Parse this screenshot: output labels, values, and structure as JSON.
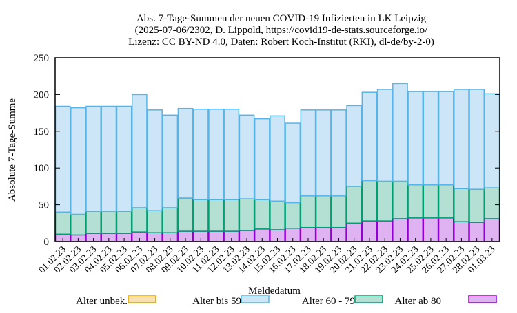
{
  "chart_data": {
    "type": "bar",
    "stacked": true,
    "title_lines": [
      "Abs. 7-Tage-Summen der neuen COVID-19 Infizierten in LK Leipzig",
      "(2025-07-06/2302, D. Lippold, https://covid19-de-stats.sourceforge.io/",
      "Lizenz: CC BY-ND 4.0, Daten: Robert Koch-Institut (RKI), dl-de/by-2-0)"
    ],
    "xlabel": "Meldedatum",
    "ylabel": "Absolute 7-Tage-Summe",
    "ylim": [
      0,
      250
    ],
    "yticks": [
      0,
      50,
      100,
      150,
      200,
      250
    ],
    "grid": false,
    "legend_position": "bottom",
    "categories": [
      "01.02.23",
      "02.02.23",
      "03.02.23",
      "04.02.23",
      "05.02.23",
      "06.02.23",
      "07.02.23",
      "08.02.23",
      "09.02.23",
      "10.02.23",
      "11.02.23",
      "12.02.23",
      "13.02.23",
      "14.02.23",
      "15.02.23",
      "16.02.23",
      "17.02.23",
      "18.02.23",
      "19.02.23",
      "20.02.23",
      "21.02.23",
      "22.02.23",
      "23.02.23",
      "24.02.23",
      "25.02.23",
      "26.02.23",
      "27.02.23",
      "28.02.23",
      "01.03.23"
    ],
    "series": [
      {
        "name": "Alter ab 80",
        "fill": "#dfb3f2",
        "stroke": "#9400d3",
        "values": [
          10,
          9,
          11,
          11,
          11,
          13,
          12,
          12,
          14,
          14,
          14,
          14,
          15,
          17,
          16,
          18,
          19,
          19,
          19,
          25,
          28,
          28,
          31,
          32,
          32,
          32,
          27,
          26,
          31
        ]
      },
      {
        "name": "Alter 60 - 79",
        "fill": "#b3e0d3",
        "stroke": "#009e73",
        "values": [
          30,
          28,
          30,
          30,
          30,
          33,
          30,
          34,
          45,
          43,
          43,
          43,
          43,
          40,
          39,
          35,
          43,
          43,
          43,
          50,
          55,
          54,
          51,
          45,
          45,
          45,
          45,
          45,
          42
        ]
      },
      {
        "name": "Alter bis 59",
        "fill": "#cce6f8",
        "stroke": "#56b4e9",
        "values": [
          144,
          145,
          143,
          143,
          143,
          154,
          137,
          126,
          122,
          123,
          123,
          123,
          114,
          110,
          116,
          108,
          117,
          117,
          117,
          110,
          120,
          125,
          133,
          127,
          127,
          127,
          135,
          136,
          128
        ]
      },
      {
        "name": "Alter unbek.",
        "fill": "#f8e0b0",
        "stroke": "#e69f00",
        "values": [
          0,
          0,
          0,
          0,
          0,
          0,
          0,
          0,
          0,
          0,
          0,
          0,
          0,
          0,
          0,
          0,
          0,
          0,
          0,
          0,
          0,
          0,
          0,
          0,
          0,
          0,
          0,
          0,
          0
        ]
      }
    ],
    "legend_order": [
      "Alter unbek.",
      "Alter bis 59",
      "Alter 60 - 79",
      "Alter ab 80"
    ]
  }
}
